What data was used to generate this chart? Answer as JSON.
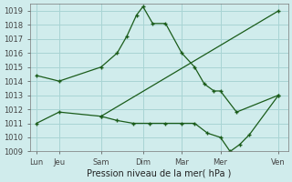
{
  "background_color": "#d0ecec",
  "grid_color": "#a8d4d4",
  "line_color": "#1a5c1a",
  "xlabel": "Pression niveau de la mer( hPa )",
  "ylim": [
    1009,
    1019.5
  ],
  "yticks": [
    1009,
    1010,
    1011,
    1012,
    1013,
    1014,
    1015,
    1016,
    1017,
    1018,
    1019
  ],
  "xlabels": [
    "Lun",
    "Jeu",
    "Sam",
    "Dim",
    "Mar",
    "Mer",
    "Ven"
  ],
  "xtick_pos": [
    0,
    0.7,
    2.0,
    3.3,
    4.5,
    5.7,
    7.5
  ],
  "s1x": [
    0,
    0.7,
    2.0,
    2.5,
    2.8,
    3.1,
    3.3,
    3.6,
    4.0,
    4.5,
    4.9,
    5.2,
    5.5,
    5.7,
    6.2,
    7.5
  ],
  "s1y": [
    1014.4,
    1014.0,
    1015.0,
    1016.0,
    1017.2,
    1018.7,
    1019.3,
    1018.1,
    1018.1,
    1016.0,
    1015.0,
    1013.8,
    1013.3,
    1013.3,
    1011.8,
    1013.0
  ],
  "s2x": [
    0,
    0.7,
    2.0,
    2.5,
    3.0,
    3.5,
    4.0,
    4.5,
    4.9,
    5.3,
    5.7,
    6.0,
    6.3,
    6.6,
    7.5
  ],
  "s2y": [
    1011.0,
    1011.8,
    1011.5,
    1011.2,
    1011.0,
    1011.0,
    1011.0,
    1011.0,
    1011.0,
    1010.3,
    1010.0,
    1009.0,
    1009.5,
    1010.2,
    1013.0
  ],
  "s3x": [
    2.0,
    7.5
  ],
  "s3y": [
    1011.5,
    1019.0
  ],
  "xlim": [
    -0.2,
    7.8
  ]
}
